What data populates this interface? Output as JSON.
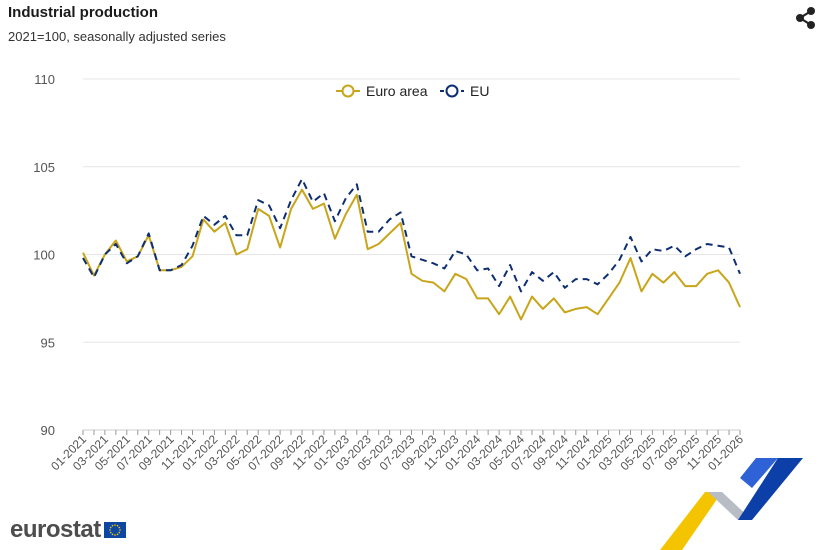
{
  "header": {
    "title": "Industrial production",
    "subtitle": "2021=100, seasonally adjusted series"
  },
  "icons": {
    "share": "share-icon",
    "logo": "eurostat-logo",
    "flag": "eu-flag-icon"
  },
  "logo": {
    "text": "eurostat"
  },
  "colors": {
    "euro_area": "#c8a51a",
    "eu": "#0e2e73",
    "grid": "#e6e6e6",
    "axis_text": "#555555"
  },
  "chart_data": {
    "type": "line",
    "title": "Industrial production",
    "subtitle": "2021=100, seasonally adjusted series",
    "xlabel": "",
    "ylabel": "",
    "ylim": [
      90,
      110
    ],
    "yticks": [
      90,
      95,
      100,
      105,
      110
    ],
    "grid": true,
    "legend_position": "top-center",
    "x": [
      "01-2021",
      "02-2021",
      "03-2021",
      "04-2021",
      "05-2021",
      "06-2021",
      "07-2021",
      "08-2021",
      "09-2021",
      "10-2021",
      "11-2021",
      "12-2021",
      "01-2022",
      "02-2022",
      "03-2022",
      "04-2022",
      "05-2022",
      "06-2022",
      "07-2022",
      "08-2022",
      "09-2022",
      "10-2022",
      "11-2022",
      "12-2022",
      "01-2023",
      "02-2023",
      "03-2023",
      "04-2023",
      "05-2023",
      "06-2023",
      "07-2023",
      "08-2023",
      "09-2023",
      "10-2023",
      "11-2023",
      "12-2023",
      "01-2024",
      "02-2024",
      "03-2024",
      "04-2024",
      "05-2024",
      "06-2024",
      "07-2024",
      "08-2024",
      "09-2024",
      "10-2024",
      "11-2024",
      "12-2024",
      "01-2025",
      "02-2025",
      "03-2025",
      "04-2025",
      "05-2025",
      "06-2025",
      "07-2025",
      "08-2025",
      "09-2025",
      "10-2025",
      "11-2025",
      "12-2025",
      "01-2026"
    ],
    "x_tick_labels": [
      "01-2021",
      "03-2021",
      "05-2021",
      "07-2021",
      "09-2021",
      "11-2021",
      "01-2022",
      "03-2022",
      "05-2022",
      "07-2022",
      "09-2022",
      "11-2022",
      "01-2023",
      "03-2023",
      "05-2023",
      "07-2023",
      "09-2023",
      "11-2023",
      "01-2024",
      "03-2024",
      "05-2024",
      "07-2024",
      "09-2024",
      "11-2024",
      "01-2025",
      "03-2025",
      "05-2025",
      "07-2025",
      "09-2025",
      "11-2025",
      "01-2026"
    ],
    "series": [
      {
        "name": "Euro area",
        "style": "solid",
        "marker": "circle-hollow",
        "values": [
          100.1,
          98.8,
          100.0,
          100.8,
          99.6,
          99.9,
          101.1,
          99.1,
          99.1,
          99.3,
          99.9,
          102.0,
          101.3,
          101.8,
          100.0,
          100.3,
          102.6,
          102.2,
          100.4,
          102.6,
          103.7,
          102.6,
          102.9,
          100.9,
          102.3,
          103.4,
          100.3,
          100.6,
          101.2,
          101.8,
          98.9,
          98.5,
          98.4,
          97.9,
          98.9,
          98.6,
          97.5,
          97.5,
          96.6,
          97.6,
          96.3,
          97.6,
          96.9,
          97.5,
          96.7,
          96.9,
          97.0,
          96.6,
          97.5,
          98.4,
          99.8,
          97.9,
          98.9,
          98.4,
          99.0,
          98.2,
          98.2,
          98.9,
          99.1,
          98.4,
          97.0
        ]
      },
      {
        "name": "EU",
        "style": "dashed",
        "marker": "circle-hollow",
        "values": [
          99.8,
          98.7,
          100.0,
          100.6,
          99.5,
          99.9,
          101.2,
          99.1,
          99.1,
          99.4,
          100.5,
          102.2,
          101.7,
          102.2,
          101.1,
          101.1,
          103.1,
          102.8,
          101.5,
          103.1,
          104.3,
          103.0,
          103.5,
          101.9,
          103.2,
          104.0,
          101.3,
          101.3,
          102.0,
          102.4,
          99.9,
          99.7,
          99.5,
          99.2,
          100.2,
          100.0,
          99.1,
          99.2,
          98.2,
          99.4,
          97.9,
          99.0,
          98.5,
          99.0,
          98.1,
          98.6,
          98.6,
          98.3,
          98.9,
          99.7,
          101.0,
          99.6,
          100.3,
          100.2,
          100.5,
          99.9,
          100.3,
          100.6,
          100.5,
          100.4,
          98.9
        ]
      }
    ]
  }
}
